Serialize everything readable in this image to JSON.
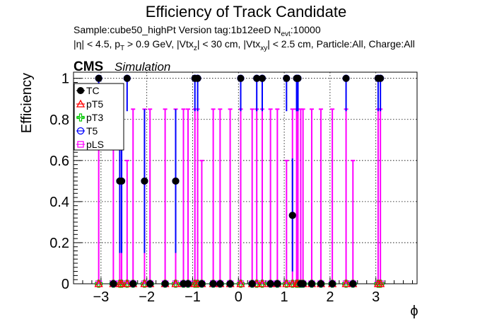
{
  "header": {
    "title": "Efficiency of Track Candidate",
    "sample_text": "Sample:cube50_highPt   Version tag:1b12eeD  N",
    "nevt_sub": "evt",
    "nevt_value": ":10000",
    "cuts_parts": [
      "|η| < 4.5, p",
      "T",
      " > 0.9 GeV, |Vtx",
      "z",
      "| < 30 cm, |Vtx",
      "xy",
      "| < 2.5 cm, Particle:All, Charge:All"
    ],
    "cms_label": "CMS",
    "simulation_label": "Simulation"
  },
  "chart_data": {
    "type": "scatter",
    "xlabel": "ϕ",
    "ylabel": "Efficiency",
    "xlim": [
      -3.6,
      3.9
    ],
    "ylim": [
      0,
      1.03
    ],
    "xticks": [
      -3,
      -2,
      -1,
      0,
      1,
      2,
      3
    ],
    "yticks": [
      0,
      0.2,
      0.4,
      0.6,
      0.8,
      1
    ],
    "grid": true,
    "legend_position": "top-left",
    "series": [
      {
        "name": "TC",
        "color": "#000000",
        "marker": "circle-filled",
        "x": [
          -3.05,
          -2.73,
          -2.59,
          -2.55,
          -2.43,
          -2.3,
          -2.05,
          -1.93,
          -1.6,
          -1.37,
          -1.2,
          -1.1,
          -0.95,
          -0.89,
          -0.8,
          -0.55,
          -0.4,
          -0.18,
          0.05,
          0.3,
          0.4,
          0.52,
          0.7,
          0.85,
          1.05,
          1.18,
          1.27,
          1.3,
          1.36,
          1.41,
          1.6,
          1.8,
          2.05,
          2.35,
          2.5,
          3.05,
          3.1
        ],
        "y": [
          1,
          0,
          0.5,
          0.5,
          1,
          0,
          0.5,
          0,
          0,
          0.5,
          0,
          0,
          1,
          1,
          0,
          0,
          0,
          0,
          1,
          0,
          1,
          1,
          0,
          0,
          1,
          0.333,
          1,
          1,
          0,
          0,
          0,
          0,
          0,
          1,
          0,
          1,
          1
        ]
      },
      {
        "name": "pT5",
        "color": "#ff0000",
        "marker": "triangle-open",
        "x": [
          -3.05,
          -2.73,
          -2.59,
          -2.55,
          -2.43,
          -2.3,
          -2.05,
          -1.93,
          -1.6,
          -1.37,
          -1.2,
          -1.1,
          -0.95,
          -0.89,
          -0.8,
          -0.55,
          -0.4,
          -0.18,
          0.05,
          0.3,
          0.4,
          0.52,
          0.7,
          0.85,
          1.05,
          1.18,
          1.27,
          1.3,
          1.36,
          1.41,
          1.6,
          1.8,
          2.05,
          2.35,
          2.5,
          3.05,
          3.1
        ],
        "y": [
          0,
          0,
          0,
          0,
          0,
          0,
          0,
          0,
          0,
          0,
          0,
          0,
          0,
          0,
          0,
          0,
          0,
          0,
          0,
          0,
          0,
          0,
          0,
          0,
          0,
          0,
          0,
          0,
          0,
          0,
          0,
          0,
          0,
          0,
          0,
          0,
          0
        ]
      },
      {
        "name": "pT3",
        "color": "#00c800",
        "marker": "cross-open",
        "x": [
          -3.05,
          -2.73,
          -2.59,
          -2.55,
          -2.43,
          -2.3,
          -2.05,
          -1.93,
          -1.6,
          -1.37,
          -1.2,
          -1.1,
          -0.95,
          -0.89,
          -0.8,
          -0.55,
          -0.4,
          -0.18,
          0.05,
          0.3,
          0.4,
          0.52,
          0.7,
          0.85,
          1.05,
          1.18,
          1.27,
          1.3,
          1.36,
          1.41,
          1.6,
          1.8,
          2.05,
          2.35,
          2.5,
          3.05,
          3.1
        ],
        "y": [
          0,
          0,
          0,
          0,
          0,
          0,
          0,
          0,
          0,
          0,
          0,
          0,
          0,
          0,
          0,
          0,
          0,
          0,
          0,
          0,
          0,
          0,
          0,
          0,
          0,
          0,
          0,
          0,
          0,
          0,
          0,
          0,
          0,
          0,
          0,
          0,
          0
        ]
      },
      {
        "name": "T5",
        "color": "#0000ff",
        "marker": "circle-open",
        "x": [
          -3.05,
          -2.73,
          -2.59,
          -2.55,
          -2.43,
          -2.3,
          -2.05,
          -1.93,
          -1.6,
          -1.37,
          -1.2,
          -1.1,
          -0.95,
          -0.89,
          -0.8,
          -0.55,
          -0.4,
          -0.18,
          0.05,
          0.3,
          0.4,
          0.52,
          0.7,
          0.85,
          1.05,
          1.18,
          1.27,
          1.3,
          1.36,
          1.41,
          1.6,
          1.8,
          2.05,
          2.35,
          2.5,
          3.05,
          3.1
        ],
        "y": [
          1,
          0,
          0.5,
          0.5,
          1,
          0,
          0.5,
          0,
          0,
          0.5,
          0,
          0,
          1,
          1,
          0,
          0,
          0,
          0,
          1,
          0,
          1,
          1,
          0,
          0,
          1,
          0.333,
          1,
          1,
          0,
          0,
          0,
          0,
          0,
          1,
          0,
          1,
          1
        ]
      },
      {
        "name": "pLS",
        "color": "#ff00ff",
        "marker": "square-open",
        "x": [
          -3.05,
          -2.73,
          -2.59,
          -2.55,
          -2.43,
          -2.3,
          -2.05,
          -1.93,
          -1.6,
          -1.37,
          -1.2,
          -1.1,
          -0.95,
          -0.89,
          -0.8,
          -0.55,
          -0.4,
          -0.18,
          0.05,
          0.3,
          0.4,
          0.52,
          0.7,
          0.85,
          1.05,
          1.18,
          1.27,
          1.3,
          1.36,
          1.41,
          1.6,
          1.8,
          2.05,
          2.35,
          2.5,
          3.05,
          3.1
        ],
        "y": [
          0,
          0,
          0,
          0,
          0,
          0,
          0,
          0,
          0,
          0,
          0,
          0,
          0,
          0,
          0,
          0,
          0,
          0,
          0,
          0,
          0,
          0,
          0,
          0,
          0,
          0,
          0,
          0,
          0,
          0,
          0,
          0,
          0,
          0,
          0,
          0,
          0
        ]
      }
    ]
  }
}
